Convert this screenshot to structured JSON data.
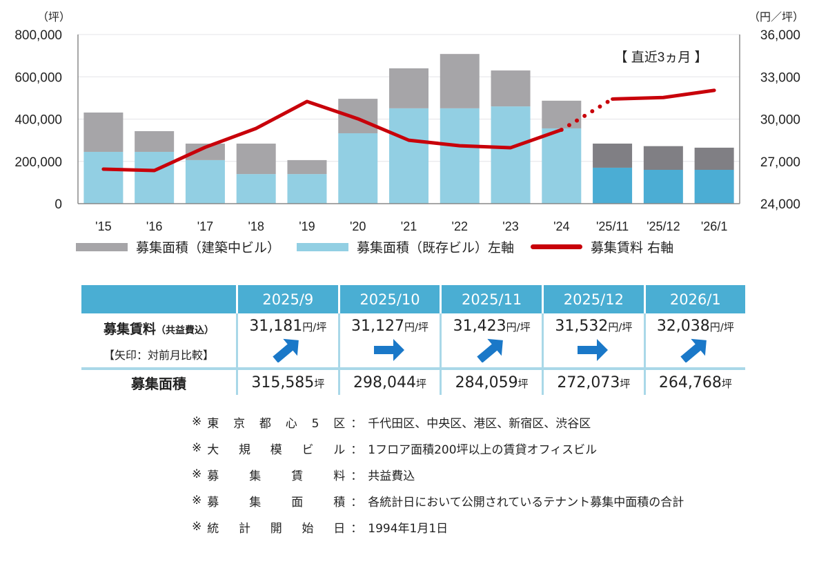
{
  "chart_data": {
    "type": "bar+line",
    "categories": [
      "'15",
      "'16",
      "'17",
      "'18",
      "'19",
      "'20",
      "'21",
      "'22",
      "'23",
      "'24",
      "'25/11",
      "'25/12",
      "'26/1"
    ],
    "series": [
      {
        "name": "募集面積（既存ビル）左軸",
        "type": "stacked-bar",
        "axis": "left",
        "values": [
          245000,
          245000,
          206000,
          140000,
          140000,
          333000,
          451000,
          451000,
          460000,
          356000,
          170000,
          160000,
          160000
        ]
      },
      {
        "name": "募集面積（建築中ビル）",
        "type": "stacked-bar",
        "axis": "left",
        "values": [
          186000,
          98000,
          78000,
          144000,
          66000,
          163000,
          189000,
          257000,
          170000,
          131000,
          114059,
          112073,
          104768
        ]
      },
      {
        "name": "募集賃料 右軸",
        "type": "line",
        "axis": "right",
        "values": [
          26450,
          26350,
          28000,
          29340,
          31250,
          30020,
          28500,
          28110,
          27970,
          29240,
          31423,
          31532,
          32038
        ]
      }
    ],
    "left_axis": {
      "unit": "（坪）",
      "range": [
        0,
        800000
      ],
      "ticks": [
        "0",
        "200,000",
        "400,000",
        "600,000",
        "800,000"
      ]
    },
    "right_axis": {
      "unit": "（円／坪）",
      "range": [
        24000,
        36000
      ],
      "ticks": [
        "24,000",
        "27,000",
        "30,000",
        "33,000",
        "36,000"
      ]
    },
    "annotation": "【 直近3ヵ月 】",
    "grid": true,
    "legend_position": "bottom",
    "colors": {
      "existing": "#92cfe3",
      "construction": "#a6a5a8",
      "existing_recent": "#4badd4",
      "construction_recent": "#807f84",
      "rent": "#c8000a"
    }
  },
  "legend": {
    "construction": "募集面積（建築中ビル）",
    "existing": "募集面積（既存ビル）左軸",
    "rent": "募集賃料 右軸"
  },
  "table": {
    "months": [
      "2025/9",
      "2025/10",
      "2025/11",
      "2025/12",
      "2026/1"
    ],
    "rent_label": "募集賃料",
    "rent_label_sub": "（共益費込）",
    "arrow_note": "【矢印：対前月比較】",
    "rent_unit": "円/坪",
    "rents": [
      "31,181",
      "31,127",
      "31,423",
      "31,532",
      "32,038"
    ],
    "arrows": [
      "up-right",
      "right",
      "up-right",
      "right",
      "up-right"
    ],
    "area_label": "募集面積",
    "area_unit": "坪",
    "areas": [
      "315,585",
      "298,044",
      "284,059",
      "272,073",
      "264,768"
    ],
    "header_color": "#4aaed3",
    "arrow_color": "#1a78c8"
  },
  "notes": [
    {
      "mark": "※",
      "label": "東京都心5区",
      "sep": "：",
      "value": "千代田区、中央区、港区、新宿区、渋谷区"
    },
    {
      "mark": "※",
      "label": "大規模ビル",
      "sep": "：",
      "value": "1フロア面積200坪以上の賃貸オフィスビル"
    },
    {
      "mark": "※",
      "label": "募集賃料",
      "sep": "：",
      "value": "共益費込"
    },
    {
      "mark": "※",
      "label": "募集面積",
      "sep": "：",
      "value": "各統計日において公開されているテナント募集中面積の合計"
    },
    {
      "mark": "※",
      "label": "統計開始日",
      "sep": "：",
      "value": "1994年1月1日"
    }
  ]
}
